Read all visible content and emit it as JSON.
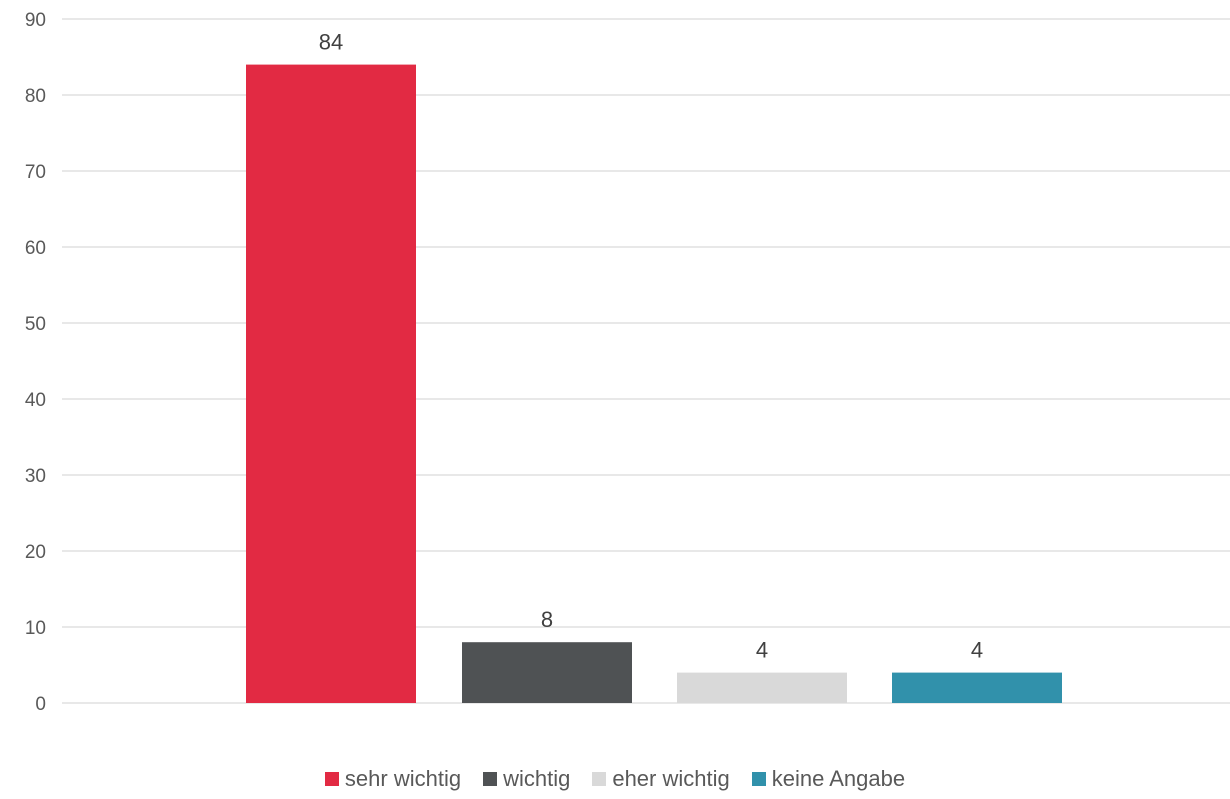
{
  "chart_data": {
    "type": "bar",
    "categories": [
      "sehr wichtig",
      "wichtig",
      "eher wichtig",
      "keine Angabe"
    ],
    "values": [
      84,
      8,
      4,
      4
    ],
    "colors": [
      "#e22a43",
      "#4f5254",
      "#d9d9d9",
      "#3191ab"
    ],
    "ylim": [
      0,
      90
    ],
    "yticks": [
      "0",
      "10",
      "20",
      "30",
      "40",
      "50",
      "60",
      "70",
      "80",
      "90"
    ],
    "data_labels": [
      "84",
      "8",
      "4",
      "4"
    ],
    "grid": true,
    "legend_position": "bottom"
  },
  "legend": {
    "items": [
      {
        "label": "sehr wichtig",
        "color": "#e22a43"
      },
      {
        "label": "wichtig",
        "color": "#4f5254"
      },
      {
        "label": "eher wichtig",
        "color": "#d9d9d9"
      },
      {
        "label": "keine Angabe",
        "color": "#3191ab"
      }
    ]
  }
}
